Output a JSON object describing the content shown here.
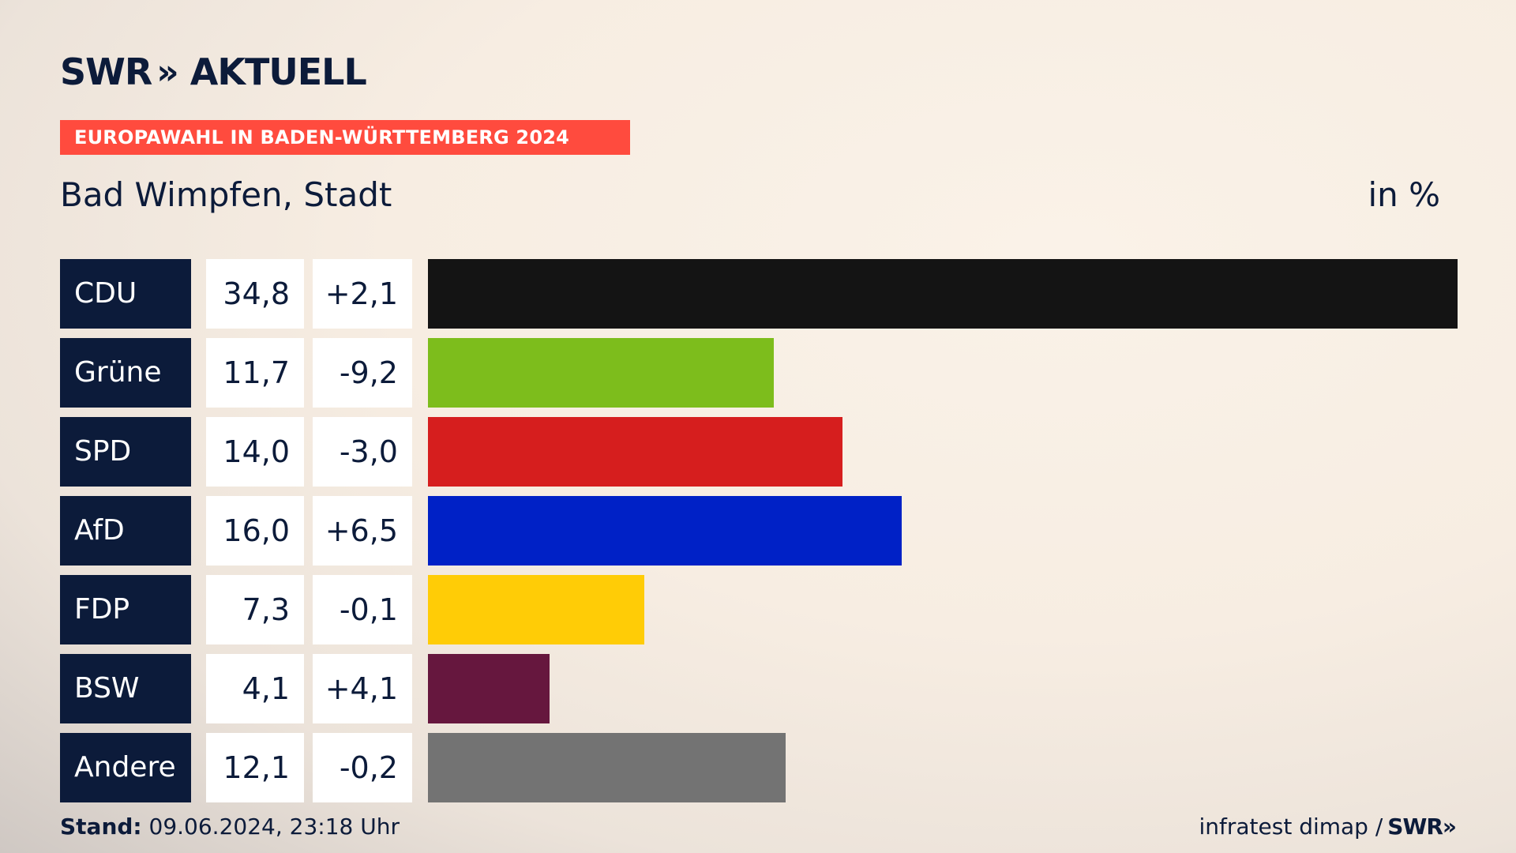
{
  "header": {
    "logo_brand": "SWR",
    "logo_chevrons": "»",
    "logo_title": "AKTUELL",
    "banner": "EUROPAWAHL IN BADEN-WÜRTTEMBERG 2024",
    "subtitle": "Bad Wimpfen, Stadt",
    "unit": "in %"
  },
  "chart_data": {
    "type": "bar",
    "orientation": "horizontal",
    "title": "EUROPAWAHL IN BADEN-WÜRTTEMBERG 2024",
    "subtitle": "Bad Wimpfen, Stadt",
    "unit": "in %",
    "xlim": [
      0,
      34.8
    ],
    "categories": [
      "CDU",
      "Grüne",
      "SPD",
      "AfD",
      "FDP",
      "BSW",
      "Andere"
    ],
    "values": [
      34.8,
      11.7,
      14.0,
      16.0,
      7.3,
      4.1,
      12.1
    ],
    "value_labels": [
      "34,8",
      "11,7",
      "14,0",
      "16,0",
      "7,3",
      "4,1",
      "12,1"
    ],
    "diff_labels": [
      "+2,1",
      "-9,2",
      "-3,0",
      "+6,5",
      "-0,1",
      "+4,1",
      "-0,2"
    ],
    "colors": [
      "#141414",
      "#7dbd1c",
      "#d61e1e",
      "#0021c6",
      "#ffcc06",
      "#66173e",
      "#737373"
    ]
  },
  "footer": {
    "stand_label": "Stand:",
    "stand_value": " 09.06.2024, 23:18 Uhr",
    "source": "infratest dimap /",
    "source_brand": "SWR»"
  }
}
